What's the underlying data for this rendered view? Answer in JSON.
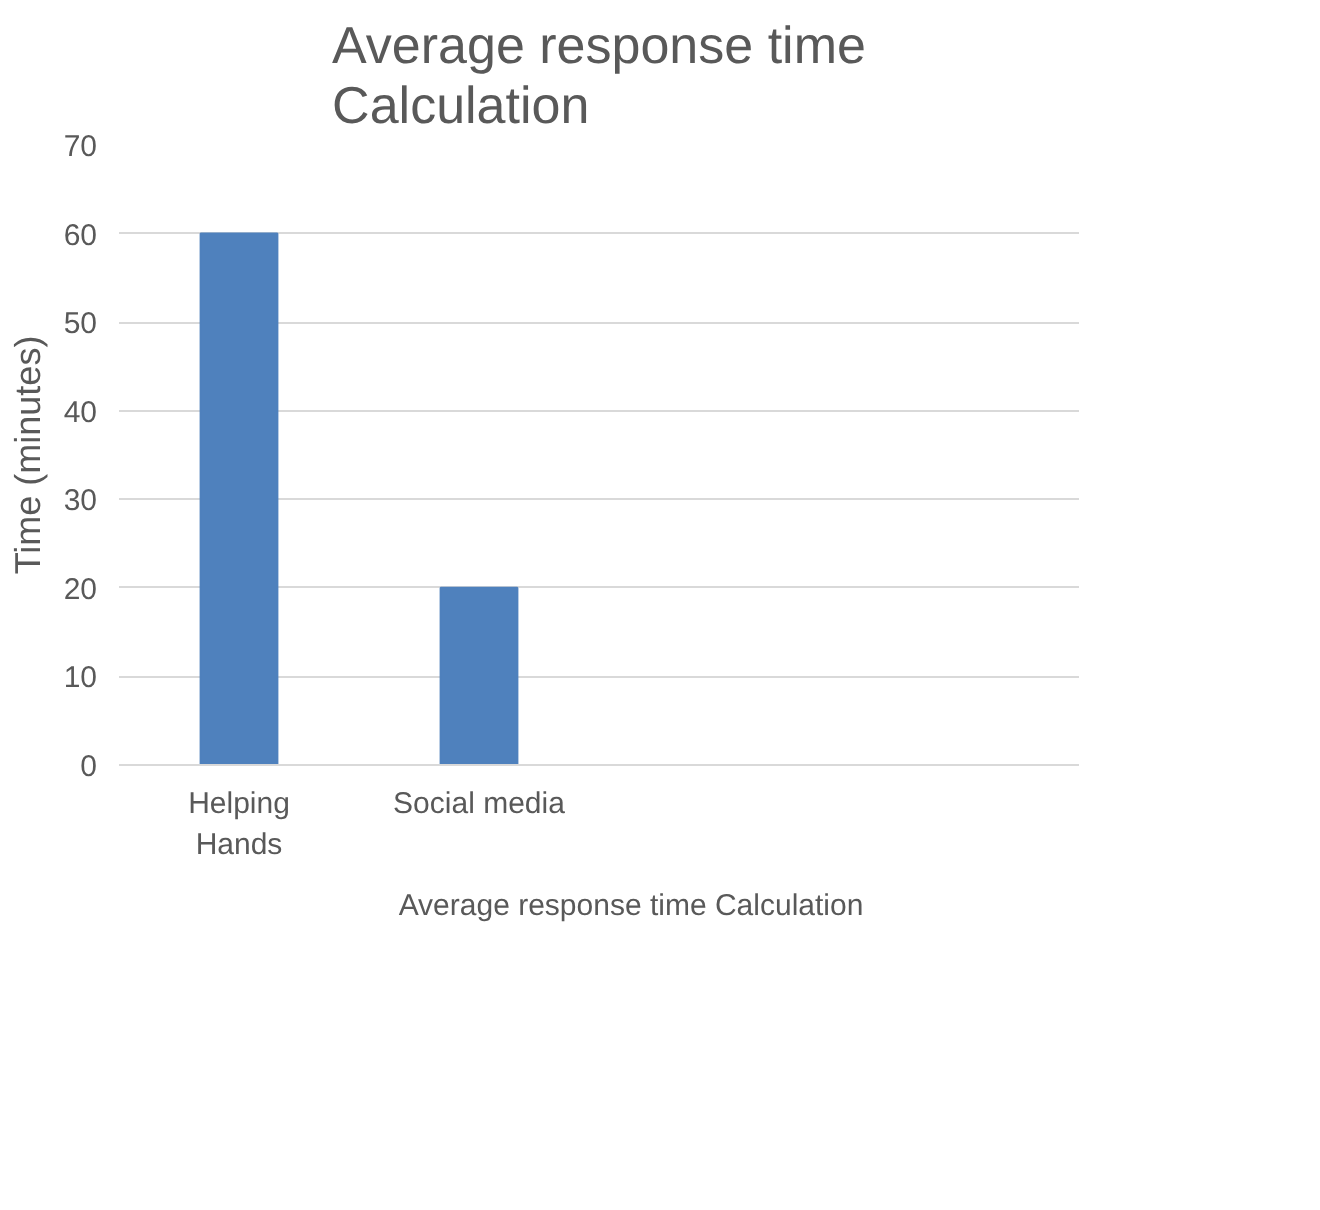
{
  "chart_data": {
    "type": "bar",
    "title": "Average response time\nCalculation",
    "ylabel": "Time (minutes)",
    "categories": [
      "Helping\nHands",
      "Social media",
      null,
      null
    ],
    "series": [
      {
        "name": "Average response time Calculation",
        "color": "#4f81bd",
        "values": [
          60,
          20,
          null,
          null
        ]
      }
    ],
    "ylim": [
      0,
      70
    ],
    "yticks": [
      0,
      10,
      20,
      30,
      40,
      50,
      60,
      70
    ],
    "grid": "y",
    "legend": "bottom"
  }
}
